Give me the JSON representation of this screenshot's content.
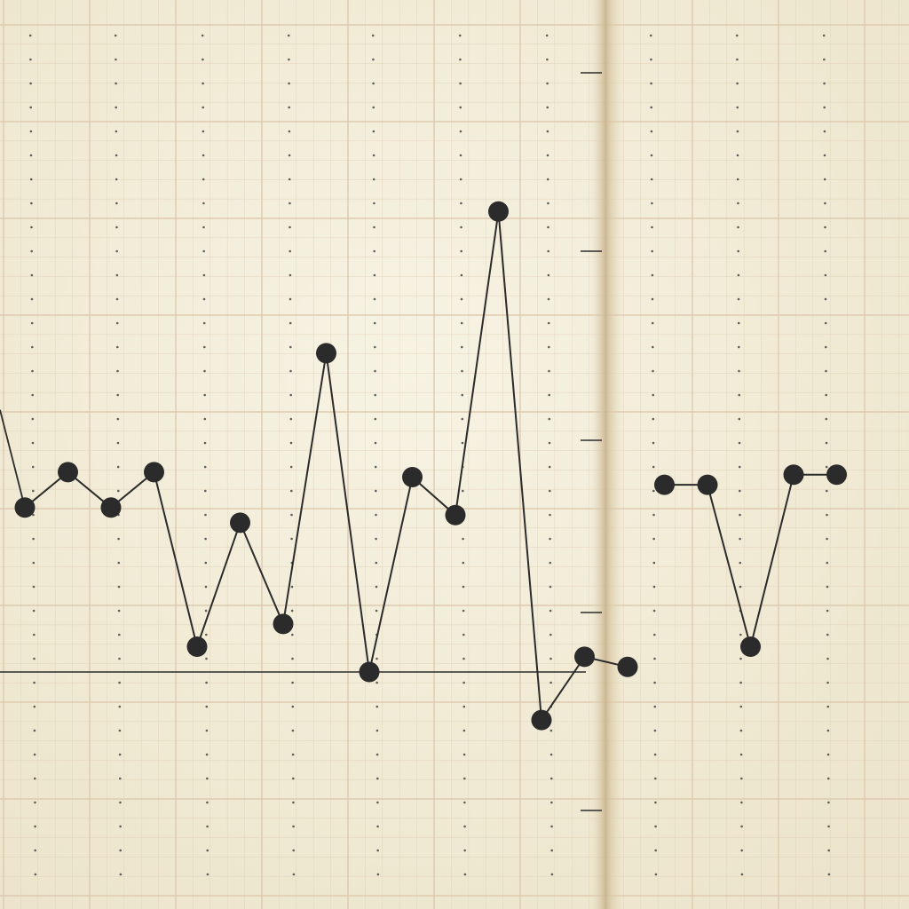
{
  "chart_data": {
    "type": "line",
    "title": "",
    "xlabel": "",
    "ylabel": "",
    "grid": true,
    "legend": "none",
    "x": [
      1,
      2,
      3,
      4,
      5,
      6,
      7,
      8,
      9,
      10,
      11,
      12,
      13,
      14,
      15,
      16,
      17,
      18,
      19,
      20
    ],
    "series": [
      {
        "values": [
          6.5,
          7.9,
          6.5,
          7.9,
          1.0,
          5.9,
          1.9,
          12.6,
          0.0,
          7.7,
          6.2,
          18.2,
          -1.9,
          0.6,
          0.2,
          7.4,
          7.4,
          1.0,
          7.8,
          7.8
        ],
        "segments": [
          [
            0,
            14
          ],
          [
            15,
            19
          ]
        ]
      }
    ],
    "baseline": 0,
    "colors": {
      "paper": "#f3eedb",
      "grid": "#dcc7ad",
      "ink": "#2b2b2b",
      "dot_guides": "#3a3a3a",
      "fold": "#c9b48e"
    }
  }
}
